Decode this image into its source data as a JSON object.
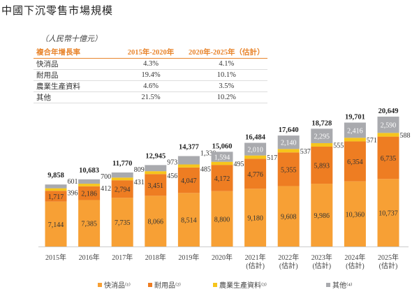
{
  "title": "中國下沉零售市場規模",
  "unit": "（人民幣十億元）",
  "cagr_table": {
    "headers": [
      "複合年增長率",
      "2015年-2020年",
      "2020年-2025年（估計）"
    ],
    "rows": [
      [
        "快消品",
        "4.3%",
        "4.1%"
      ],
      [
        "耐用品",
        "19.4%",
        "10.1%"
      ],
      [
        "農業生產資料",
        "4.6%",
        "3.5%"
      ],
      [
        "其他",
        "21.5%",
        "10.2%"
      ]
    ]
  },
  "chart_data": {
    "type": "bar",
    "stacked": true,
    "categories": [
      "2015年",
      "2016年",
      "2017年",
      "2018年",
      "2019年",
      "2020年",
      "2021年\n(估計)",
      "2022年\n(估計)",
      "2023年\n(估計)",
      "2024年\n(估計)",
      "2025年\n(估計)"
    ],
    "series": [
      {
        "name": "快消品⁽¹⁾",
        "color": "#F7A035",
        "values": [
          7144,
          7385,
          7735,
          8066,
          8514,
          8800,
          9180,
          9608,
          9986,
          10360,
          10737
        ]
      },
      {
        "name": "耐用品⁽²⁾",
        "color": "#EE7D22",
        "values": [
          1717,
          2186,
          2794,
          3451,
          4047,
          4172,
          4776,
          5355,
          5893,
          6354,
          6735
        ]
      },
      {
        "name": "農業生產資料⁽³⁾",
        "color": "#F6C51C",
        "values": [
          396,
          412,
          431,
          456,
          485,
          495,
          517,
          537,
          555,
          571,
          588
        ]
      },
      {
        "name": "其他⁽⁴⁾",
        "color": "#A9AAAE",
        "values": [
          601,
          700,
          809,
          973,
          1330,
          1594,
          2010,
          2140,
          2295,
          2416,
          2590
        ]
      }
    ],
    "totals": [
      9858,
      10683,
      11770,
      12945,
      14377,
      15060,
      16484,
      17640,
      18728,
      19701,
      20649
    ],
    "legend": "bottom",
    "grid": false
  }
}
